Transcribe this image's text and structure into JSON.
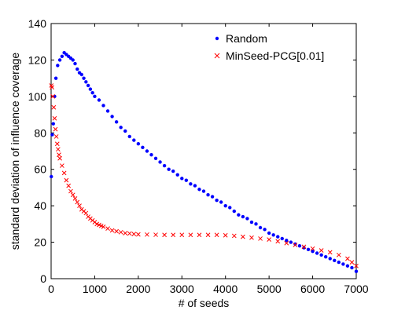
{
  "chart_data": {
    "type": "scatter",
    "title": "",
    "xlabel": "# of seeds",
    "ylabel": "standard deviation of influence coverage",
    "xlim": [
      0,
      7000
    ],
    "ylim": [
      0,
      140
    ],
    "xticks": [
      0,
      1000,
      2000,
      3000,
      4000,
      5000,
      6000,
      7000
    ],
    "yticks": [
      0,
      20,
      40,
      60,
      80,
      100,
      120,
      140
    ],
    "grid": false,
    "legend": "top-right",
    "series": [
      {
        "name": "Random",
        "marker": "dot",
        "color": "#0000ff",
        "x": [
          5,
          25,
          50,
          80,
          110,
          150,
          200,
          250,
          300,
          350,
          400,
          450,
          500,
          550,
          600,
          650,
          700,
          750,
          800,
          850,
          900,
          950,
          1000,
          1100,
          1200,
          1300,
          1400,
          1500,
          1600,
          1700,
          1800,
          1900,
          2000,
          2100,
          2200,
          2300,
          2400,
          2500,
          2600,
          2700,
          2800,
          2900,
          3000,
          3100,
          3200,
          3300,
          3400,
          3500,
          3600,
          3700,
          3800,
          3900,
          4000,
          4100,
          4200,
          4300,
          4400,
          4500,
          4600,
          4700,
          4800,
          4900,
          5000,
          5100,
          5200,
          5300,
          5400,
          5500,
          5600,
          5700,
          5800,
          5900,
          6000,
          6100,
          6200,
          6300,
          6400,
          6500,
          6600,
          6700,
          6800,
          6900,
          7000
        ],
        "y": [
          56,
          79,
          85,
          100,
          110,
          117,
          120,
          122,
          124,
          123,
          122,
          121,
          120,
          118,
          115,
          113,
          112,
          110,
          108,
          106,
          104,
          102,
          100,
          98,
          95,
          92,
          89,
          86,
          83,
          81,
          78,
          76,
          74,
          72,
          70,
          68,
          66,
          64,
          62,
          60,
          59,
          57,
          55,
          54,
          52,
          51,
          49,
          48,
          46,
          45,
          43,
          42,
          40,
          39,
          37,
          35,
          34,
          33,
          31,
          30,
          28,
          27,
          25,
          24,
          23,
          22,
          21,
          20,
          19,
          18,
          17,
          16,
          15,
          14,
          13,
          12,
          11,
          10,
          9,
          8,
          7,
          6,
          4
        ]
      },
      {
        "name": "MinSeed-PCG[0.01]",
        "marker": "x",
        "color": "#ff0000",
        "x": [
          5,
          20,
          40,
          60,
          80,
          100,
          120,
          140,
          160,
          180,
          200,
          250,
          300,
          350,
          400,
          450,
          500,
          550,
          600,
          650,
          700,
          750,
          800,
          850,
          900,
          950,
          1000,
          1050,
          1100,
          1150,
          1200,
          1300,
          1400,
          1500,
          1600,
          1700,
          1800,
          1900,
          2000,
          2200,
          2400,
          2600,
          2800,
          3000,
          3200,
          3400,
          3600,
          3800,
          4000,
          4200,
          4400,
          4600,
          4800,
          5000,
          5200,
          5400,
          5600,
          5800,
          6000,
          6200,
          6400,
          6600,
          6800,
          6900,
          7000
        ],
        "y": [
          106,
          105,
          100,
          94,
          88,
          82,
          78,
          74,
          71,
          68,
          66,
          62,
          58,
          54,
          51,
          48,
          46,
          44,
          42,
          40,
          38,
          37,
          36,
          34,
          33,
          32,
          31,
          30,
          29.5,
          29,
          28.5,
          27.5,
          26.5,
          26,
          25.5,
          25,
          24.8,
          24.5,
          24.3,
          24.2,
          24.1,
          24,
          24,
          24,
          24,
          24,
          24,
          24,
          23.8,
          23.5,
          23,
          22.5,
          22,
          21.5,
          20.5,
          19.5,
          18.5,
          17.5,
          16.5,
          15.5,
          14.5,
          13,
          11,
          9,
          7
        ]
      }
    ]
  }
}
